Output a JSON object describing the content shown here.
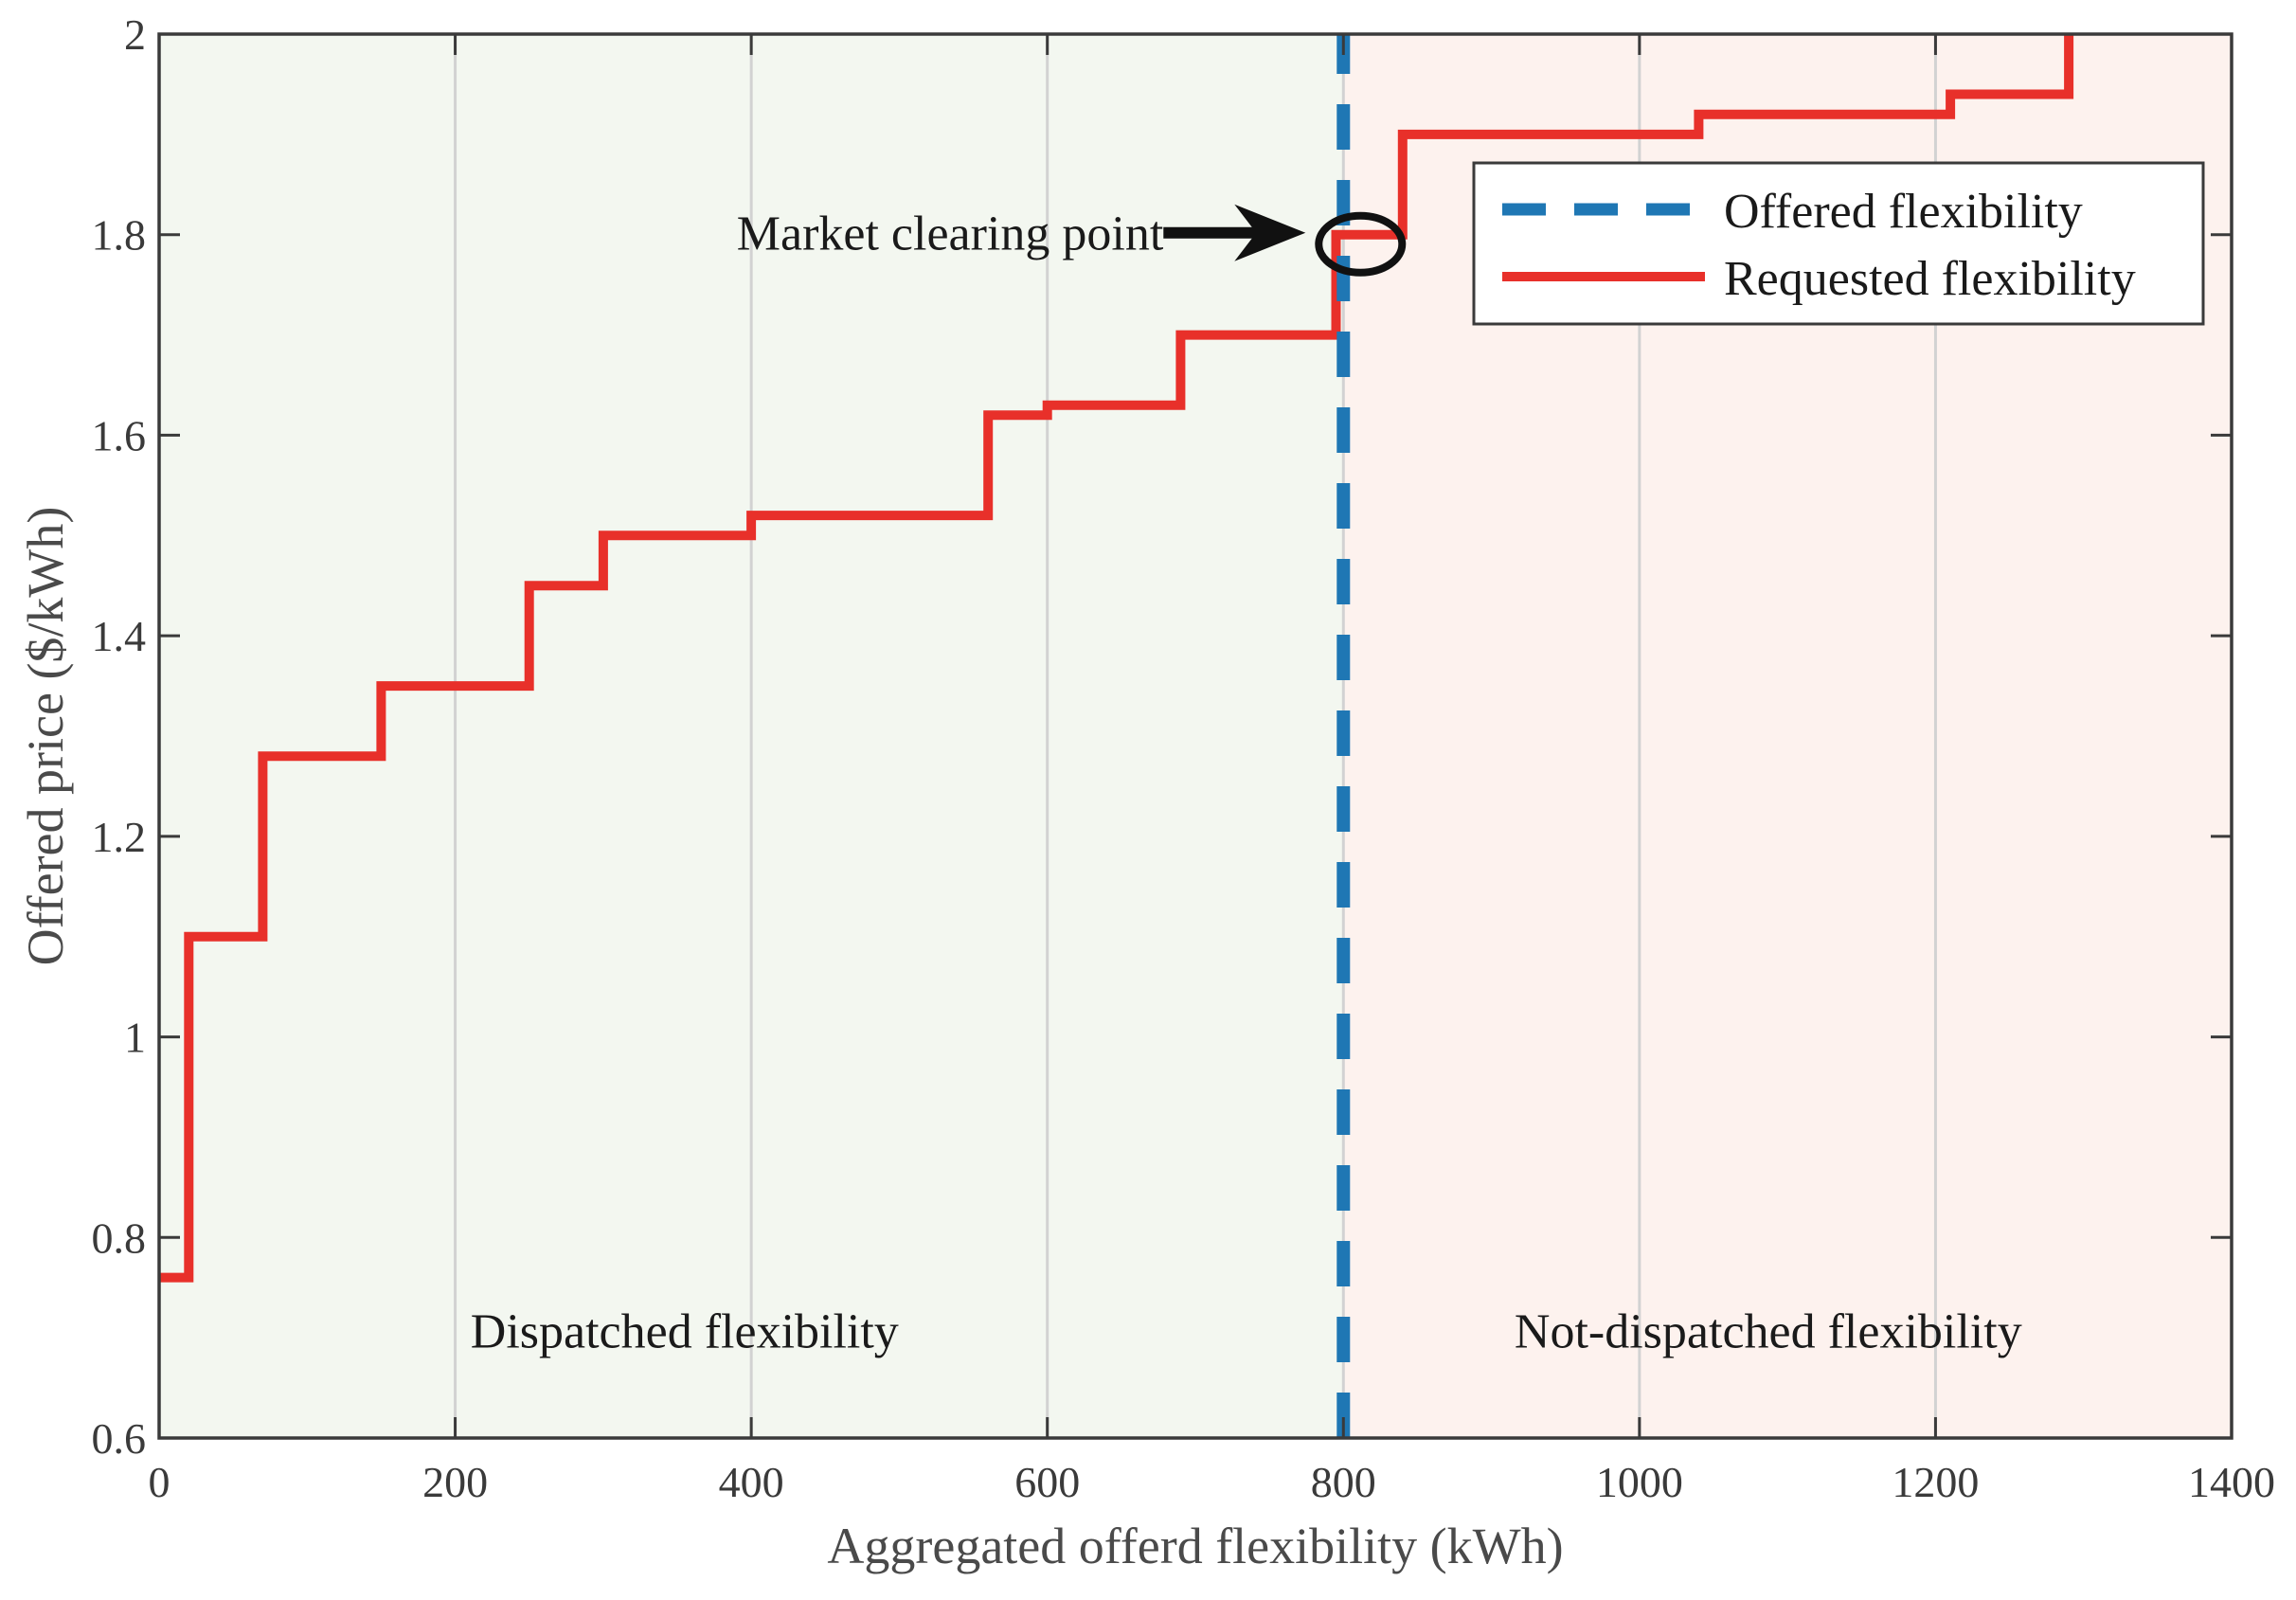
{
  "chart_data": {
    "type": "line",
    "xlabel": "Aggregated offerd flexibility (kWh)",
    "ylabel": "Offered price ($/kWh)",
    "xlim": [
      0,
      1400
    ],
    "ylim": [
      0.6,
      2.0
    ],
    "xticks": [
      0,
      200,
      400,
      600,
      800,
      1000,
      1200,
      1400
    ],
    "yticks": [
      0.6,
      0.8,
      1.0,
      1.2,
      1.4,
      1.6,
      1.8,
      2.0
    ],
    "xtick_labels": [
      "0",
      "200",
      "400",
      "600",
      "800",
      "1000",
      "1200",
      "1400"
    ],
    "ytick_labels": [
      "0.6",
      "0.8",
      "1",
      "1.2",
      "1.4",
      "1.6",
      "1.8",
      "2"
    ],
    "series": [
      {
        "name": "Offered flexibility",
        "style": "dashed-vertical",
        "color": "#1f77b4",
        "x": [
          800,
          800
        ],
        "y": [
          0.6,
          2.0
        ]
      },
      {
        "name": "Requested flexibility",
        "style": "step",
        "color": "#e8302a",
        "x": [
          0,
          20,
          20,
          70,
          70,
          150,
          150,
          250,
          250,
          300,
          300,
          400,
          400,
          560,
          560,
          600,
          600,
          690,
          690,
          795,
          795,
          840,
          840,
          1040,
          1040,
          1210,
          1210,
          1290,
          1290
        ],
        "y": [
          0.76,
          0.76,
          1.1,
          1.1,
          1.28,
          1.28,
          1.35,
          1.35,
          1.45,
          1.45,
          1.5,
          1.5,
          1.52,
          1.52,
          1.62,
          1.62,
          1.63,
          1.63,
          1.7,
          1.7,
          1.8,
          1.8,
          1.9,
          1.9,
          1.92,
          1.92,
          1.94,
          1.94,
          2.0
        ]
      }
    ],
    "regions": [
      {
        "label": "Dispatched flexibility",
        "x_range": [
          0,
          800
        ],
        "color": "#f3f7f0"
      },
      {
        "label": "Not-dispatched flexibility",
        "x_range": [
          800,
          1400
        ],
        "color": "#fdf2ee"
      }
    ],
    "annotation": {
      "text": "Market clearing point",
      "x": 800,
      "y": 1.8
    },
    "legend": {
      "position": "top-right",
      "entries": [
        "Offered flexibility",
        "Requested flexibility"
      ]
    },
    "grid": "vertical-only"
  }
}
